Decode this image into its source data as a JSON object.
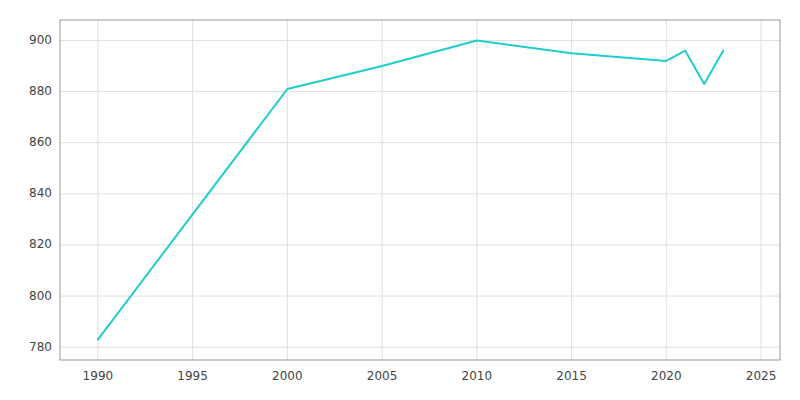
{
  "chart_data": {
    "type": "line",
    "x": [
      1990,
      2000,
      2005,
      2010,
      2015,
      2020,
      2021,
      2022,
      2023
    ],
    "values": [
      783,
      881,
      890,
      900,
      895,
      892,
      896,
      883,
      896
    ],
    "color": "#22cccc",
    "xlim": [
      1988,
      2026
    ],
    "ylim": [
      775,
      908
    ],
    "xticks": [
      1990,
      1995,
      2000,
      2005,
      2010,
      2015,
      2020,
      2025
    ],
    "yticks": [
      780,
      800,
      820,
      840,
      860,
      880,
      900
    ],
    "grid": true
  }
}
